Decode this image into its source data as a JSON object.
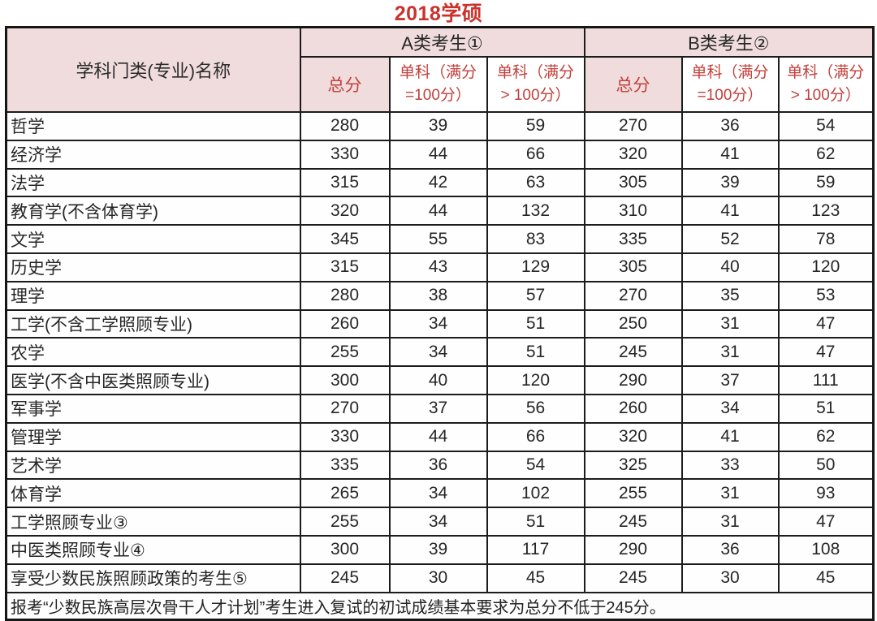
{
  "page_title": "2018学硕",
  "colors": {
    "title_red": "#cb322c",
    "accent_red": "#c2403c",
    "header_pink": "#f0dcdc",
    "border_black": "#1c1c1c",
    "text_dark": "#262626"
  },
  "chart_data": {
    "type": "table",
    "title": "2018学硕",
    "corner_header": "学科门类(专业)名称",
    "column_groups": [
      "A类考生①",
      "B类考生②"
    ],
    "sub_columns": [
      "总分",
      "单科（满分=100分）",
      "单科（满分>100分）"
    ],
    "sub_header_display": {
      "total": "总分",
      "single_line1": "单科（满分",
      "eq_line2": "=100分）",
      "gt_line2": "> 100分）"
    },
    "rows": [
      {
        "name": "哲学",
        "a": [
          280,
          39,
          59
        ],
        "b": [
          270,
          36,
          54
        ]
      },
      {
        "name": "经济学",
        "a": [
          330,
          44,
          66
        ],
        "b": [
          320,
          41,
          62
        ]
      },
      {
        "name": "法学",
        "a": [
          315,
          42,
          63
        ],
        "b": [
          305,
          39,
          59
        ]
      },
      {
        "name": "教育学(不含体育学)",
        "a": [
          320,
          44,
          132
        ],
        "b": [
          310,
          41,
          123
        ]
      },
      {
        "name": "文学",
        "a": [
          345,
          55,
          83
        ],
        "b": [
          335,
          52,
          78
        ]
      },
      {
        "name": "历史学",
        "a": [
          315,
          43,
          129
        ],
        "b": [
          305,
          40,
          120
        ]
      },
      {
        "name": "理学",
        "a": [
          280,
          38,
          57
        ],
        "b": [
          270,
          35,
          53
        ]
      },
      {
        "name": "工学(不含工学照顾专业)",
        "a": [
          260,
          34,
          51
        ],
        "b": [
          250,
          31,
          47
        ]
      },
      {
        "name": "农学",
        "a": [
          255,
          34,
          51
        ],
        "b": [
          245,
          31,
          47
        ]
      },
      {
        "name": "医学(不含中医类照顾专业)",
        "a": [
          300,
          40,
          120
        ],
        "b": [
          290,
          37,
          111
        ]
      },
      {
        "name": "军事学",
        "a": [
          270,
          37,
          56
        ],
        "b": [
          260,
          34,
          51
        ]
      },
      {
        "name": "管理学",
        "a": [
          330,
          44,
          66
        ],
        "b": [
          320,
          41,
          62
        ]
      },
      {
        "name": "艺术学",
        "a": [
          335,
          36,
          54
        ],
        "b": [
          325,
          33,
          50
        ]
      },
      {
        "name": "体育学",
        "a": [
          265,
          34,
          102
        ],
        "b": [
          255,
          31,
          93
        ]
      },
      {
        "name": "工学照顾专业③",
        "a": [
          255,
          34,
          51
        ],
        "b": [
          245,
          31,
          47
        ]
      },
      {
        "name": "中医类照顾专业④",
        "a": [
          300,
          39,
          117
        ],
        "b": [
          290,
          36,
          108
        ]
      },
      {
        "name": "享受少数民族照顾政策的考生⑤",
        "a": [
          245,
          30,
          45
        ],
        "b": [
          245,
          30,
          45
        ]
      }
    ],
    "footnote": "报考“少数民族高层次骨干人才计划”考生进入复试的初试成绩基本要求为总分不低于245分。",
    "layout": {
      "grid": true,
      "header_levels": 2,
      "data_row_count": 17
    }
  }
}
